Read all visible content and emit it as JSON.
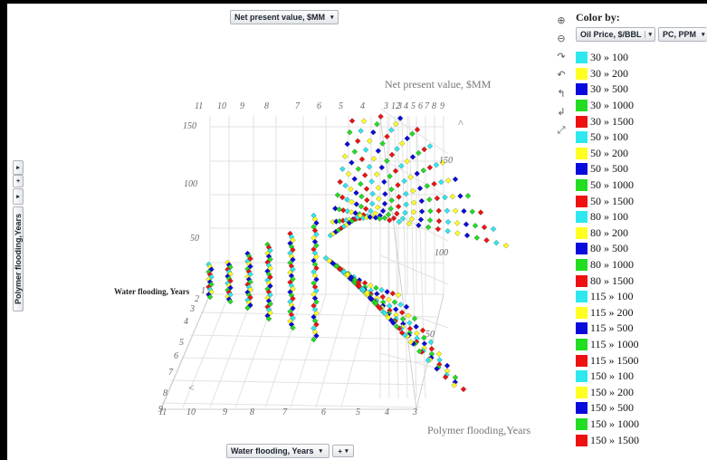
{
  "plot": {
    "z_selector": "Net present value, $MM",
    "y_selector": "Polymer flooding,Years",
    "x_selector": "Water flooding, Years",
    "plus_label": "+",
    "arrow_down": "▾",
    "arrow_right": "▸",
    "axis_title_z": "Net present value, $MM",
    "axis_title_x": "Water flooding, Years",
    "axis_title_y": "Polymer flooding,Years",
    "back_x_ticks": [
      "11",
      "10",
      "9",
      "8",
      "7",
      "6",
      "5",
      "4",
      "3",
      "12",
      "3",
      "4",
      "5",
      "6",
      "7",
      "8",
      "9"
    ],
    "left_z_ticks": [
      "150",
      "100",
      "50"
    ],
    "right_z_ticks": [
      "150",
      "100",
      "50"
    ],
    "left_y_ticks": [
      "1",
      "2",
      "3",
      "4",
      "5",
      "6",
      "7",
      "8",
      "9"
    ],
    "bottom_x_ticks": [
      "11",
      "10",
      "9",
      "8",
      "7",
      "6",
      "5",
      "4",
      "3"
    ],
    "nav_up": "^",
    "nav_left": "<"
  },
  "toolbar": {
    "zoom_in_icon": "⊕",
    "zoom_out_icon": "⊖",
    "rotate_down_icon": "↷",
    "rotate_left_icon": "↶",
    "rotate_up_icon": "↰",
    "rotate_right_icon": "↲",
    "reset_icon": "⤢"
  },
  "color_by": {
    "title": "Color by:",
    "selector_1": "Oil Price, $/BBL",
    "selector_2": "PC, PPM"
  },
  "legend": [
    {
      "label": "30 » 100",
      "color": "#2ee8f0"
    },
    {
      "label": "30 » 200",
      "color": "#ffff22"
    },
    {
      "label": "30 » 500",
      "color": "#0a0adc"
    },
    {
      "label": "30 » 1000",
      "color": "#22dd22"
    },
    {
      "label": "30 » 1500",
      "color": "#ee1111"
    },
    {
      "label": "50 » 100",
      "color": "#2ee8f0"
    },
    {
      "label": "50 » 200",
      "color": "#ffff22"
    },
    {
      "label": "50 » 500",
      "color": "#0a0adc"
    },
    {
      "label": "50 » 1000",
      "color": "#22dd22"
    },
    {
      "label": "50 » 1500",
      "color": "#ee1111"
    },
    {
      "label": "80 » 100",
      "color": "#2ee8f0"
    },
    {
      "label": "80 » 200",
      "color": "#ffff22"
    },
    {
      "label": "80 » 500",
      "color": "#0a0adc"
    },
    {
      "label": "80 » 1000",
      "color": "#22dd22"
    },
    {
      "label": "80 » 1500",
      "color": "#ee1111"
    },
    {
      "label": "115 » 100",
      "color": "#2ee8f0"
    },
    {
      "label": "115 » 200",
      "color": "#ffff22"
    },
    {
      "label": "115 » 500",
      "color": "#0a0adc"
    },
    {
      "label": "115 » 1000",
      "color": "#22dd22"
    },
    {
      "label": "115 » 1500",
      "color": "#ee1111"
    },
    {
      "label": "150 » 100",
      "color": "#2ee8f0"
    },
    {
      "label": "150 » 200",
      "color": "#ffff22"
    },
    {
      "label": "150 » 500",
      "color": "#0a0adc"
    },
    {
      "label": "150 » 1000",
      "color": "#22dd22"
    },
    {
      "label": "150 » 1500",
      "color": "#ee1111"
    }
  ]
}
